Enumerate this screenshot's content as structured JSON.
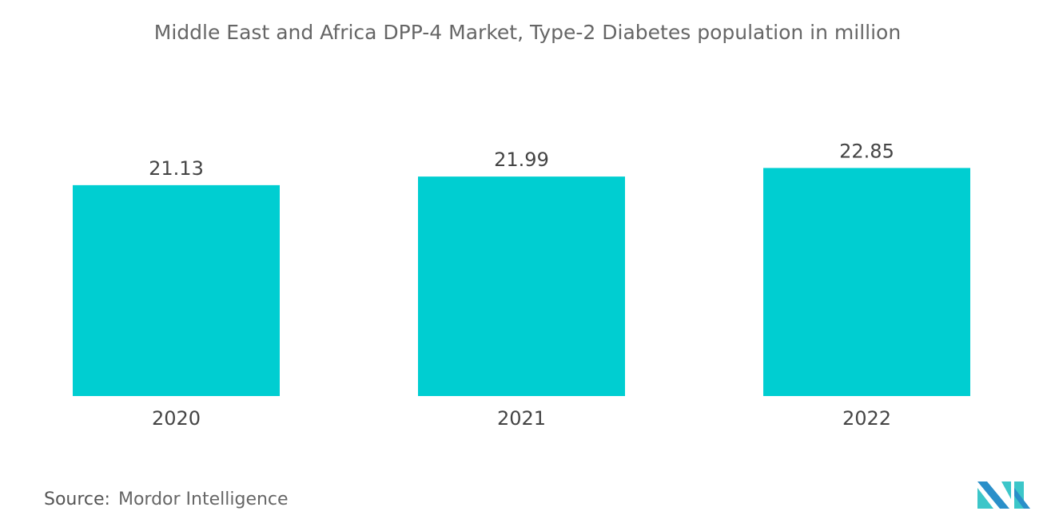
{
  "chart_data": {
    "type": "bar",
    "title": "Middle East and Africa DPP-4 Market, Type-2 Diabetes population in million",
    "categories": [
      "2020",
      "2021",
      "2022"
    ],
    "values": [
      21.13,
      21.99,
      22.85
    ],
    "data_labels": [
      "21.13",
      "21.99",
      "22.85"
    ],
    "xlabel": "",
    "ylabel": "",
    "ylim": [
      0,
      23
    ],
    "grid": false,
    "bar_color": "#00CED1"
  },
  "source": {
    "label": "Source:",
    "text": "Mordor Intelligence"
  },
  "logo": {
    "colors": [
      "#2A8FC9",
      "#3CC6C9"
    ]
  }
}
